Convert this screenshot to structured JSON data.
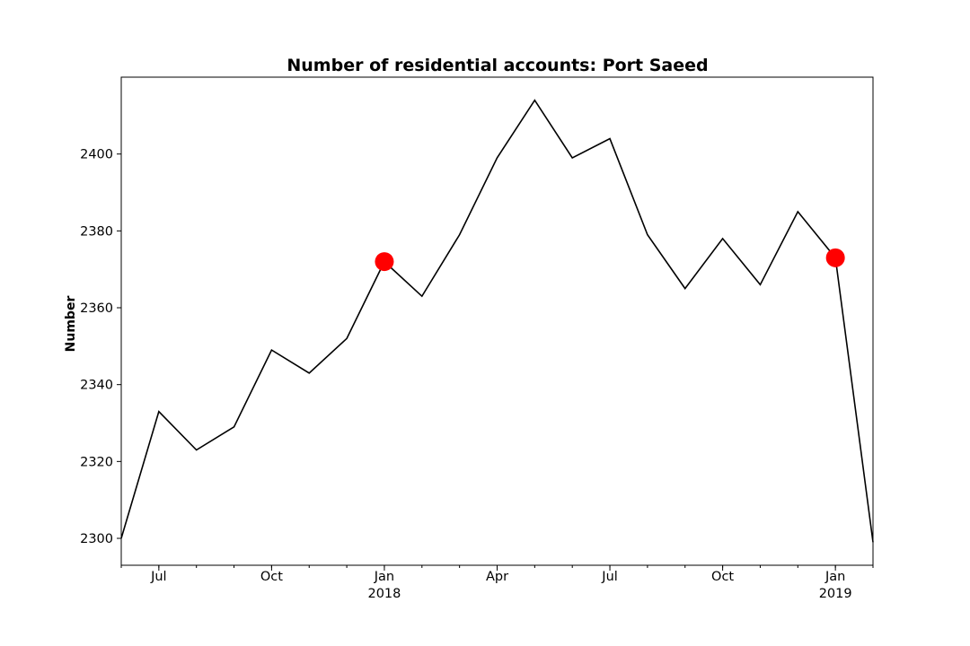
{
  "chart_data": {
    "type": "line",
    "title": "Number of residential accounts: Port Saeed",
    "xlabel": "",
    "ylabel": "Number",
    "x": [
      "2017-06",
      "2017-07",
      "2017-08",
      "2017-09",
      "2017-10",
      "2017-11",
      "2017-12",
      "2018-01",
      "2018-02",
      "2018-03",
      "2018-04",
      "2018-05",
      "2018-06",
      "2018-07",
      "2018-08",
      "2018-09",
      "2018-10",
      "2018-11",
      "2018-12",
      "2019-01",
      "2019-02"
    ],
    "series": [
      {
        "values": [
          2300,
          2333,
          2323,
          2329,
          2349,
          2343,
          2352,
          2372,
          2363,
          2379,
          2399,
          2414,
          2399,
          2404,
          2379,
          2365,
          2378,
          2366,
          2385,
          2373,
          2299
        ],
        "color": "#000000"
      }
    ],
    "highlight_points": [
      {
        "x": "2018-01",
        "value": 2372,
        "color": "#ff0000"
      },
      {
        "x": "2019-01",
        "value": 2373,
        "color": "#ff0000"
      }
    ],
    "ylim": [
      2293,
      2420
    ],
    "yticks": [
      2300,
      2320,
      2340,
      2360,
      2380,
      2400
    ],
    "xticks": [
      {
        "x": "2017-07",
        "label": "Jul",
        "sublabel": ""
      },
      {
        "x": "2017-10",
        "label": "Oct",
        "sublabel": ""
      },
      {
        "x": "2018-01",
        "label": "Jan",
        "sublabel": "2018"
      },
      {
        "x": "2018-04",
        "label": "Apr",
        "sublabel": ""
      },
      {
        "x": "2018-07",
        "label": "Jul",
        "sublabel": ""
      },
      {
        "x": "2018-10",
        "label": "Oct",
        "sublabel": ""
      },
      {
        "x": "2019-01",
        "label": "Jan",
        "sublabel": "2019"
      }
    ],
    "grid": false,
    "legend": "none"
  }
}
